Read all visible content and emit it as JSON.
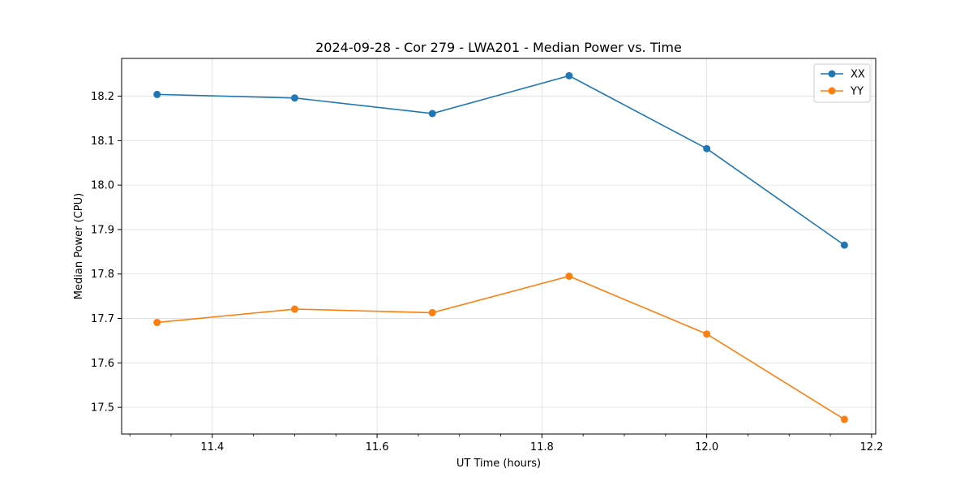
{
  "chart_data": {
    "type": "line",
    "title": "2024-09-28 - Cor 279 - LWA201 - Median Power vs. Time",
    "xlabel": "UT Time (hours)",
    "ylabel": "Median Power (CPU)",
    "xlim": [
      11.29,
      12.205
    ],
    "ylim": [
      17.44,
      18.285
    ],
    "xticks": [
      11.4,
      11.6,
      11.8,
      12.0,
      12.2
    ],
    "xtick_labels": [
      "11.4",
      "11.6",
      "11.8",
      "12.0",
      "12.2"
    ],
    "yticks": [
      17.5,
      17.6,
      17.7,
      17.8,
      17.9,
      18.0,
      18.1,
      18.2
    ],
    "ytick_labels": [
      "17.5",
      "17.6",
      "17.7",
      "17.8",
      "17.9",
      "18.0",
      "18.1",
      "18.2"
    ],
    "grid": true,
    "legend_position": "top-right",
    "x": [
      11.333,
      11.5,
      11.667,
      11.833,
      12.0,
      12.167
    ],
    "series": [
      {
        "name": "XX",
        "color": "#1f77b4",
        "marker": "circle",
        "values": [
          18.204,
          18.196,
          18.161,
          18.246,
          18.082,
          17.865
        ]
      },
      {
        "name": "YY",
        "color": "#ff7f0e",
        "marker": "circle",
        "values": [
          17.691,
          17.721,
          17.713,
          17.795,
          17.665,
          17.473
        ]
      }
    ]
  }
}
